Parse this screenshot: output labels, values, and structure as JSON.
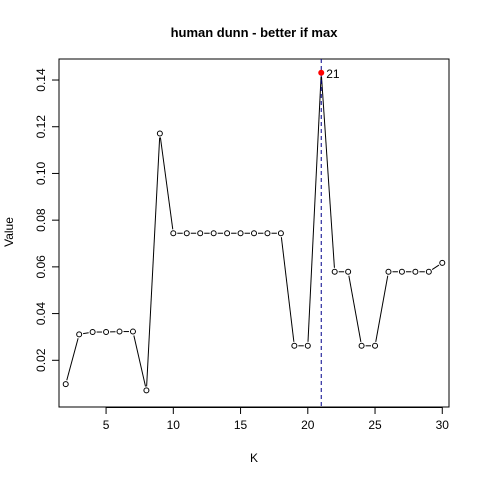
{
  "chart_data": {
    "type": "line",
    "title": "human dunn - better if  max",
    "xlabel": "K",
    "ylabel": "Value",
    "xlim": [
      1.5,
      30.5
    ],
    "ylim": [
      0.0,
      0.149
    ],
    "x_ticks": [
      5,
      10,
      15,
      20,
      25,
      30
    ],
    "y_ticks": [
      0.02,
      0.04,
      0.06,
      0.08,
      0.1,
      0.12,
      0.14
    ],
    "y_tick_labels": [
      "0.02",
      "0.04",
      "0.06",
      "0.08",
      "0.10",
      "0.12",
      "0.14"
    ],
    "grid": false,
    "series": [
      {
        "x": [
          2,
          3,
          4,
          5,
          6,
          7,
          8,
          9,
          10,
          11,
          12,
          13,
          14,
          15,
          16,
          17,
          18,
          19,
          20,
          21,
          22,
          23,
          24,
          25,
          26,
          27,
          28,
          29,
          30
        ],
        "values": [
          0.0098,
          0.0311,
          0.0321,
          0.0321,
          0.0323,
          0.0323,
          0.0071,
          0.1171,
          0.0744,
          0.0744,
          0.0744,
          0.0744,
          0.0744,
          0.0744,
          0.0744,
          0.0744,
          0.0744,
          0.0262,
          0.0262,
          0.1431,
          0.0579,
          0.0579,
          0.0262,
          0.0262,
          0.0579,
          0.0579,
          0.0579,
          0.0579,
          0.0617
        ]
      }
    ],
    "highlight": {
      "x": 21,
      "value": 0.1431,
      "label": "21",
      "color": "#ff0000"
    },
    "vline": {
      "x": 21,
      "color": "#00008b"
    }
  }
}
